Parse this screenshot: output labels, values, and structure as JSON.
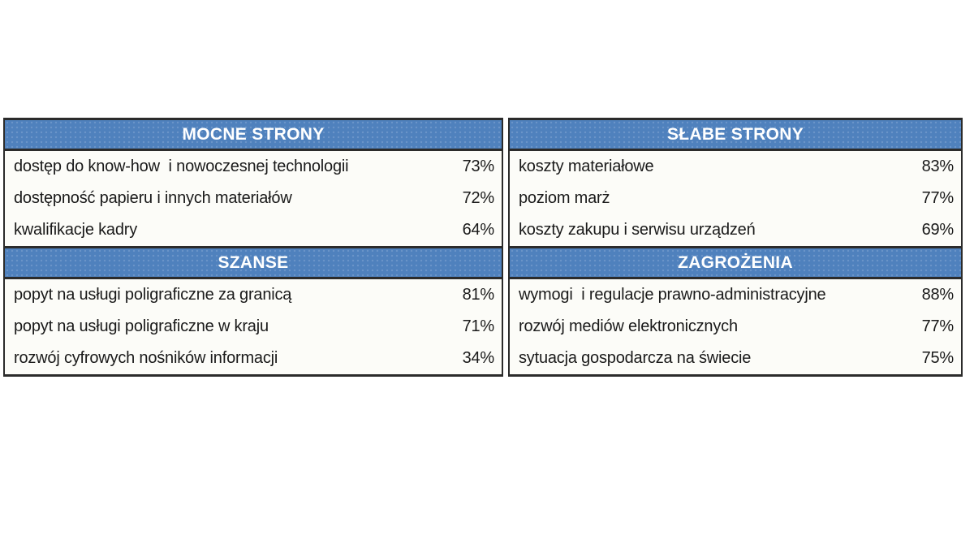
{
  "colors": {
    "page_bg": "#ffffff",
    "panel_bg": "#fcfcf8",
    "header_bg": "#4f81bd",
    "header_text": "#ffffff",
    "border": "#2b2b2b",
    "row_text": "#1a1a1a"
  },
  "chart_data": {
    "type": "table",
    "layout": "swot-2x2-grid",
    "quadrants": [
      {
        "title": "MOCNE STRONY",
        "items": [
          {
            "label": "dostęp do know-how  i nowoczesnej technologii",
            "value": "73%",
            "percent": 73
          },
          {
            "label": "dostępność papieru i innych materiałów",
            "value": "72%",
            "percent": 72
          },
          {
            "label": "kwalifikacje kadry",
            "value": "64%",
            "percent": 64
          }
        ]
      },
      {
        "title": "SŁABE STRONY",
        "items": [
          {
            "label": "koszty materiałowe",
            "value": "83%",
            "percent": 83
          },
          {
            "label": "poziom marż",
            "value": "77%",
            "percent": 77
          },
          {
            "label": "koszty zakupu i serwisu urządzeń",
            "value": "69%",
            "percent": 69
          }
        ]
      },
      {
        "title": "SZANSE",
        "items": [
          {
            "label": "popyt na usługi poligraficzne za granicą",
            "value": "81%",
            "percent": 81
          },
          {
            "label": "popyt na usługi poligraficzne w kraju",
            "value": "71%",
            "percent": 71
          },
          {
            "label": "rozwój cyfrowych nośników informacji",
            "value": "34%",
            "percent": 34
          }
        ]
      },
      {
        "title": "ZAGROŻENIA",
        "items": [
          {
            "label": "wymogi  i regulacje prawno-administracyjne",
            "value": "88%",
            "percent": 88
          },
          {
            "label": "rozwój mediów elektronicznych",
            "value": "77%",
            "percent": 77
          },
          {
            "label": "sytuacja gospodarcza na świecie",
            "value": "75%",
            "percent": 75
          }
        ]
      }
    ]
  }
}
